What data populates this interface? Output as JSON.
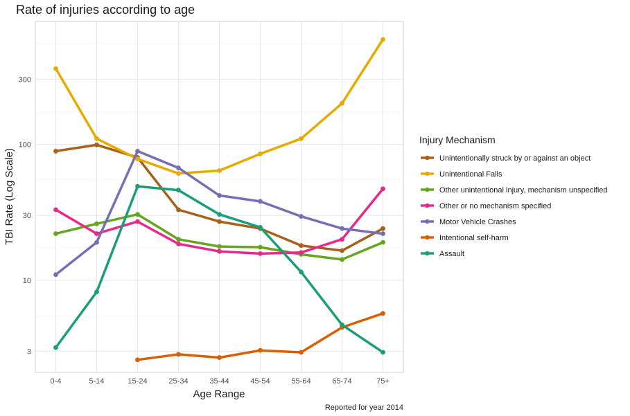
{
  "chart_data": {
    "type": "line",
    "title": "Rate of injuries according to age",
    "xlabel": "Age Range",
    "ylabel": "TBI Rate (Log Scale)",
    "caption": "Reported for year 2014",
    "y_scale": "log10",
    "ylim": [
      2.1,
      800
    ],
    "yticks": [
      3,
      10,
      30,
      100,
      300
    ],
    "grid": true,
    "legend": {
      "title": "Injury Mechanism",
      "position": "right"
    },
    "categories": [
      "0-4",
      "5-14",
      "15-24",
      "25-34",
      "35-44",
      "45-54",
      "55-64",
      "65-74",
      "75+"
    ],
    "series": [
      {
        "name": "Unintentionally struck by or against an object",
        "color": "#A6611A",
        "values": [
          89,
          99,
          80,
          33,
          27,
          24,
          18,
          16.5,
          24
        ]
      },
      {
        "name": "Unintentional Falls",
        "color": "#E6AB02",
        "values": [
          360,
          110,
          78,
          61,
          64,
          85,
          110,
          200,
          590
        ]
      },
      {
        "name": "Other unintentional injury, mechanism unspecified",
        "color": "#66A61E",
        "values": [
          22,
          26,
          30.5,
          20,
          17.7,
          17.5,
          15.5,
          14.2,
          19
        ]
      },
      {
        "name": "Other or no mechanism specified",
        "color": "#E7298A",
        "values": [
          33,
          22,
          27,
          18.5,
          16.3,
          15.7,
          16,
          20,
          47
        ]
      },
      {
        "name": "Motor Vehicle Crashes",
        "color": "#7570B3",
        "values": [
          11,
          19,
          89,
          67,
          42,
          38,
          29.5,
          24,
          22
        ]
      },
      {
        "name": "Intentional self-harm",
        "color": "#D95F02",
        "values": [
          null,
          null,
          2.6,
          2.85,
          2.7,
          3.05,
          2.95,
          4.5,
          5.7
        ]
      },
      {
        "name": "Assault",
        "color": "#1B9E77",
        "values": [
          3.2,
          8.2,
          49,
          46,
          30.5,
          24.5,
          11.5,
          4.7,
          2.95
        ]
      }
    ]
  }
}
